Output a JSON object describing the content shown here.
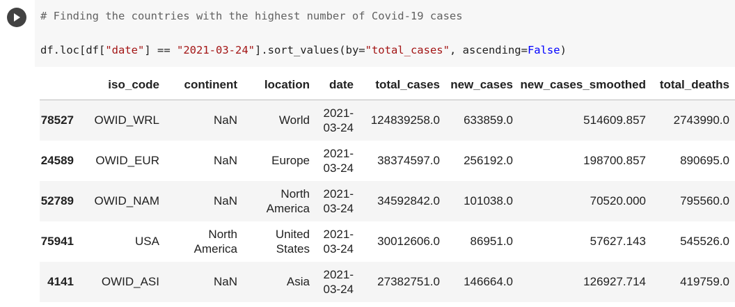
{
  "code_cell": {
    "comment": "# Finding the countries with the highest number of Covid-19 cases",
    "code": {
      "p1": "df.loc[df[",
      "s1": "\"date\"",
      "p2": "] == ",
      "s2": "\"2021-03-24\"",
      "p3": "].sort_values(by=",
      "s3": "\"total_cases\"",
      "p4": ", ascending=",
      "kw": "False",
      "p5": ")"
    }
  },
  "table": {
    "columns": [
      "",
      "iso_code",
      "continent",
      "location",
      "date",
      "total_cases",
      "new_cases",
      "new_cases_smoothed",
      "total_deaths"
    ],
    "rows": [
      {
        "index": "78527",
        "iso_code": "OWID_WRL",
        "continent": "NaN",
        "location": "World",
        "date": "2021-03-24",
        "total_cases": "124839258.0",
        "new_cases": "633859.0",
        "new_cases_smoothed": "514609.857",
        "total_deaths": "2743990.0"
      },
      {
        "index": "24589",
        "iso_code": "OWID_EUR",
        "continent": "NaN",
        "location": "Europe",
        "date": "2021-03-24",
        "total_cases": "38374597.0",
        "new_cases": "256192.0",
        "new_cases_smoothed": "198700.857",
        "total_deaths": "890695.0"
      },
      {
        "index": "52789",
        "iso_code": "OWID_NAM",
        "continent": "NaN",
        "location": "North America",
        "date": "2021-03-24",
        "total_cases": "34592842.0",
        "new_cases": "101038.0",
        "new_cases_smoothed": "70520.000",
        "total_deaths": "795560.0"
      },
      {
        "index": "75941",
        "iso_code": "USA",
        "continent": "North America",
        "location": "United States",
        "date": "2021-03-24",
        "total_cases": "30012606.0",
        "new_cases": "86951.0",
        "new_cases_smoothed": "57627.143",
        "total_deaths": "545526.0"
      },
      {
        "index": "4141",
        "iso_code": "OWID_ASI",
        "continent": "NaN",
        "location": "Asia",
        "date": "2021-03-24",
        "total_cases": "27382751.0",
        "new_cases": "146664.0",
        "new_cases_smoothed": "126927.714",
        "total_deaths": "419759.0"
      }
    ]
  }
}
